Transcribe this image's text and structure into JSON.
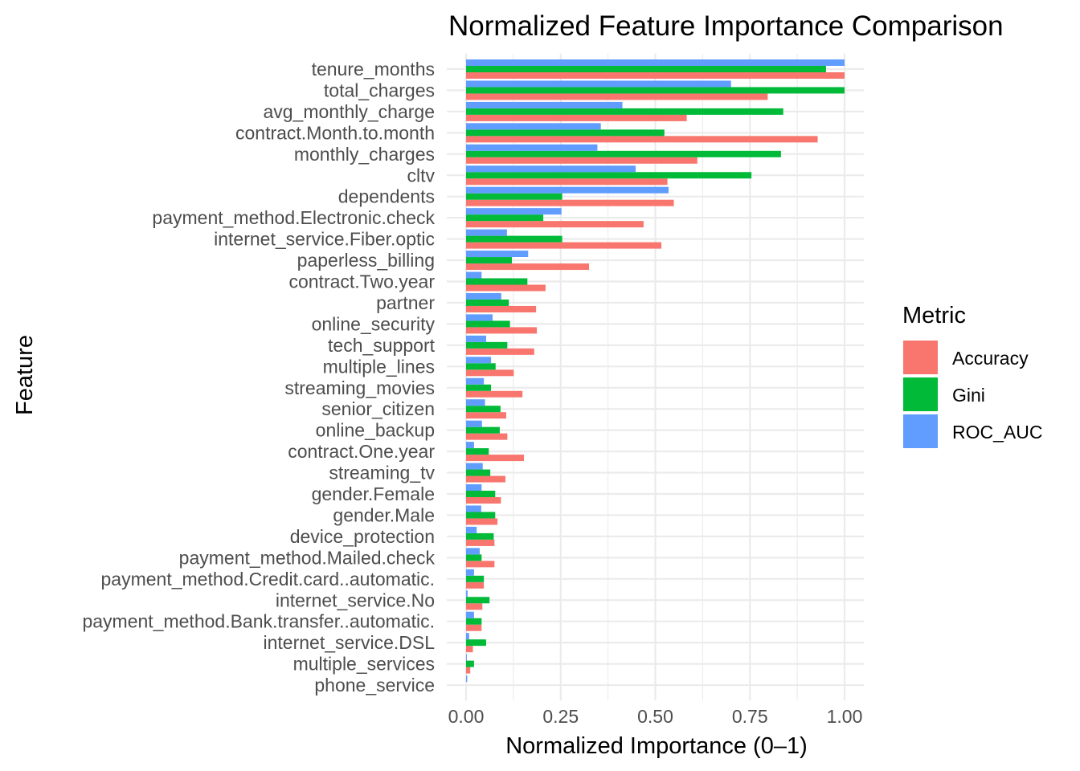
{
  "chart_data": {
    "type": "bar",
    "orientation": "horizontal",
    "title": "Normalized Feature Importance Comparison",
    "xlabel": "Normalized Importance (0–1)",
    "ylabel": "Feature",
    "xlim": [
      0,
      1.0
    ],
    "x_ticks": [
      "0.00",
      "0.25",
      "0.50",
      "0.75",
      "1.00"
    ],
    "grid": true,
    "legend": {
      "title": "Metric",
      "placement": "right"
    },
    "categories": [
      "tenure_months",
      "total_charges",
      "avg_monthly_charge",
      "contract.Month.to.month",
      "monthly_charges",
      "cltv",
      "dependents",
      "payment_method.Electronic.check",
      "internet_service.Fiber.optic",
      "paperless_billing",
      "contract.Two.year",
      "partner",
      "online_security",
      "tech_support",
      "multiple_lines",
      "streaming_movies",
      "senior_citizen",
      "online_backup",
      "contract.One.year",
      "streaming_tv",
      "gender.Female",
      "gender.Male",
      "device_protection",
      "payment_method.Mailed.check",
      "payment_method.Credit.card..automatic.",
      "internet_service.No",
      "payment_method.Bank.transfer..automatic.",
      "internet_service.DSL",
      "multiple_services",
      "phone_service"
    ],
    "series": [
      {
        "name": "Accuracy",
        "color": "#F8766D",
        "values": [
          1.0,
          0.797,
          0.583,
          0.929,
          0.611,
          0.532,
          0.549,
          0.469,
          0.516,
          0.325,
          0.21,
          0.185,
          0.187,
          0.18,
          0.126,
          0.149,
          0.106,
          0.109,
          0.153,
          0.104,
          0.092,
          0.083,
          0.075,
          0.075,
          0.047,
          0.043,
          0.041,
          0.018,
          0.011,
          0.0
        ]
      },
      {
        "name": "Gini",
        "color": "#00BA38",
        "values": [
          0.951,
          1.0,
          0.838,
          0.524,
          0.832,
          0.754,
          0.254,
          0.204,
          0.254,
          0.121,
          0.162,
          0.113,
          0.116,
          0.109,
          0.078,
          0.066,
          0.091,
          0.089,
          0.06,
          0.064,
          0.077,
          0.077,
          0.073,
          0.041,
          0.047,
          0.062,
          0.041,
          0.053,
          0.021,
          0.0
        ]
      },
      {
        "name": "ROC_AUC",
        "color": "#619CFF",
        "values": [
          1.0,
          0.7,
          0.413,
          0.356,
          0.347,
          0.448,
          0.535,
          0.252,
          0.108,
          0.164,
          0.041,
          0.093,
          0.07,
          0.053,
          0.066,
          0.047,
          0.05,
          0.042,
          0.021,
          0.044,
          0.041,
          0.04,
          0.028,
          0.036,
          0.021,
          0.004,
          0.021,
          0.008,
          0.002,
          0.003
        ]
      }
    ]
  }
}
